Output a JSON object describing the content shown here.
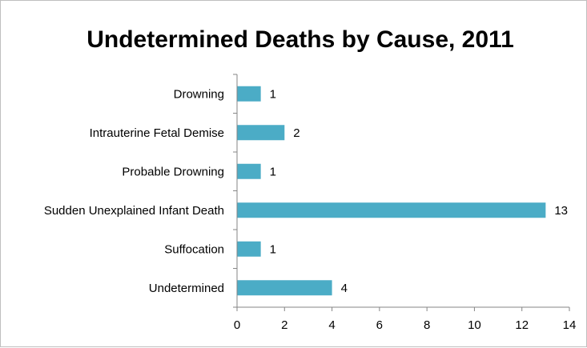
{
  "chart_data": {
    "type": "bar",
    "orientation": "horizontal",
    "title": "Undetermined Deaths by Cause, 2011",
    "xlabel": "",
    "ylabel": "",
    "categories": [
      "Drowning",
      "Intrauterine Fetal Demise",
      "Probable Drowning",
      "Sudden Unexplained Infant Death",
      "Suffocation",
      "Undetermined"
    ],
    "values": [
      1,
      2,
      1,
      13,
      1,
      4
    ],
    "xlim": [
      0,
      14
    ],
    "xticks": [
      0,
      2,
      4,
      6,
      8,
      10,
      12,
      14
    ],
    "grid": false,
    "legend": "none",
    "bar_color": "#4bacc6",
    "data_labels": true
  }
}
